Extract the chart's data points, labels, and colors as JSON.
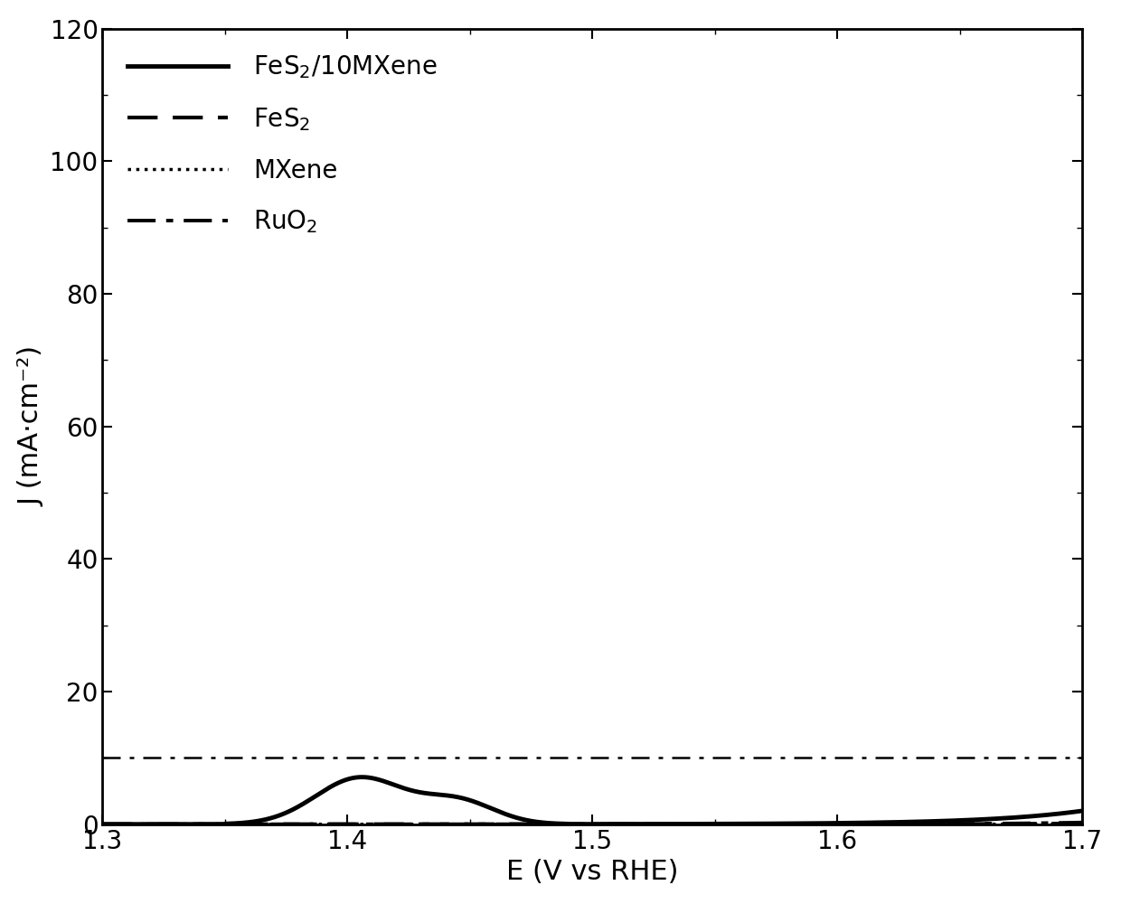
{
  "title": "",
  "xlabel": "E (V vs RHE)",
  "ylabel": "J (mA·cm⁻²)",
  "xlim": [
    1.3,
    1.7
  ],
  "ylim": [
    0,
    120
  ],
  "yticks": [
    0,
    20,
    40,
    60,
    80,
    100,
    120
  ],
  "xticks": [
    1.3,
    1.4,
    1.5,
    1.6,
    1.7
  ],
  "hline_y": 10,
  "line_color": "#000000",
  "background_color": "#ffffff",
  "legend_labels": [
    "FeS$_2$/10MXene",
    "FeS$_2$",
    "MXene",
    "RuO$_2$"
  ],
  "legend_loc": "upper left",
  "fontsize_axis_label": 22,
  "fontsize_tick": 20,
  "fontsize_legend": 20,
  "linewidth_solid": 3.5,
  "linewidth_dashed": 3.0,
  "linewidth_dotted": 2.5,
  "linewidth_dashdot": 2.8,
  "linewidth_hline": 1.8
}
